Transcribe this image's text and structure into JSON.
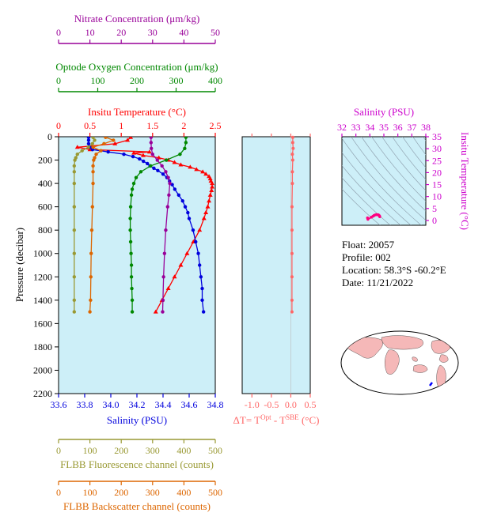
{
  "info": {
    "float": "Float:  20057",
    "profile": "Profile:  002",
    "location": "Location:  58.3°S  -60.2°E",
    "date": "Date:  11/21/2022"
  },
  "colors": {
    "temperature": "#ff0000",
    "salinity": "#0000dd",
    "oxygen": "#008800",
    "nitrate": "#990099",
    "fluorescence": "#999933",
    "backscatter": "#dd6600",
    "dt": "#ff6666",
    "panel_bg": "#cdeff8",
    "map_land": "#f5b8b8"
  },
  "chart_data": [
    {
      "type": "line",
      "panel": "main",
      "ylabel": "Pressure (decibar)",
      "ylim": [
        2200,
        0
      ],
      "yticks": [
        0,
        200,
        400,
        600,
        800,
        1000,
        1200,
        1400,
        1600,
        1800,
        2000,
        2200
      ],
      "axes": {
        "nitrate": {
          "label": "Nitrate Concentration (μm/kg)",
          "lim": [
            0,
            50
          ],
          "ticks": [
            0,
            10,
            20,
            30,
            40,
            50
          ]
        },
        "oxygen": {
          "label": "Optode Oxygen Concentration (μm/kg)",
          "lim": [
            0,
            400
          ],
          "ticks": [
            0,
            100,
            200,
            300,
            400
          ]
        },
        "temperature": {
          "label": "Insitu Temperature (°C)",
          "lim": [
            0,
            2.5
          ],
          "ticks": [
            "0",
            "0.5",
            "1",
            "1.5",
            "2",
            "2.5"
          ]
        },
        "salinity": {
          "label": "Salinity (PSU)",
          "lim": [
            33.6,
            34.8
          ],
          "ticks": [
            "33.6",
            "33.8",
            "34.0",
            "34.2",
            "34.4",
            "34.6",
            "34.8"
          ]
        },
        "fluorescence": {
          "label": "FLBB Fluorescence channel (counts)",
          "lim": [
            0,
            500
          ],
          "ticks": [
            0,
            100,
            200,
            300,
            400,
            500
          ]
        },
        "backscatter": {
          "label": "FLBB Backscatter channel (counts)",
          "lim": [
            0,
            500
          ],
          "ticks": [
            0,
            100,
            200,
            300,
            400,
            500
          ]
        }
      },
      "series": [
        {
          "key": "temperature",
          "marker": "triangle",
          "pressure": [
            5,
            30,
            60,
            90,
            110,
            130,
            140,
            160,
            180,
            200,
            220,
            240,
            260,
            280,
            300,
            320,
            340,
            360,
            380,
            400,
            430,
            460,
            500,
            550,
            600,
            650,
            700,
            800,
            900,
            1000,
            1100,
            1200,
            1300,
            1400,
            1500
          ],
          "values": [
            1.15,
            1.1,
            0.9,
            0.3,
            0.5,
            1.45,
            1.2,
            1.35,
            1.6,
            1.75,
            1.85,
            1.95,
            2.1,
            2.2,
            2.3,
            2.35,
            2.4,
            2.42,
            2.43,
            2.45,
            2.45,
            2.44,
            2.42,
            2.4,
            2.38,
            2.35,
            2.32,
            2.25,
            2.15,
            2.05,
            1.95,
            1.85,
            1.75,
            1.65,
            1.55
          ]
        },
        {
          "key": "salinity",
          "marker": "circle",
          "pressure": [
            5,
            30,
            60,
            90,
            110,
            130,
            150,
            170,
            190,
            210,
            230,
            250,
            270,
            290,
            320,
            350,
            380,
            410,
            450,
            500,
            550,
            600,
            650,
            700,
            800,
            900,
            1000,
            1100,
            1200,
            1300,
            1400,
            1500
          ],
          "values": [
            33.83,
            33.83,
            33.83,
            33.84,
            33.86,
            33.98,
            34.1,
            34.17,
            34.22,
            34.25,
            34.28,
            34.3,
            34.33,
            34.36,
            34.4,
            34.43,
            34.45,
            34.47,
            34.49,
            34.52,
            34.55,
            34.57,
            34.59,
            34.6,
            34.63,
            34.65,
            34.67,
            34.68,
            34.69,
            34.7,
            34.7,
            34.71
          ]
        },
        {
          "key": "oxygen",
          "marker": "circle",
          "pressure": [
            5,
            50,
            100,
            150,
            200,
            250,
            300,
            350,
            400,
            450,
            500,
            600,
            700,
            800,
            900,
            1000,
            1100,
            1200,
            1300,
            1400,
            1500
          ],
          "values": [
            325,
            325,
            322,
            310,
            275,
            235,
            210,
            198,
            192,
            188,
            186,
            184,
            183,
            183,
            184,
            185,
            186,
            186,
            187,
            188,
            188
          ]
        },
        {
          "key": "nitrate",
          "marker": "circle",
          "pressure": [
            5,
            50,
            100,
            150,
            200,
            250,
            300,
            350,
            400,
            500,
            600,
            800,
            1000,
            1200,
            1400,
            1500
          ],
          "values": [
            29.5,
            29.5,
            29.6,
            30,
            31.5,
            33,
            34.2,
            35,
            35.5,
            35.2,
            34.8,
            34.2,
            33.8,
            33.5,
            33.3,
            33.2
          ]
        },
        {
          "key": "fluorescence",
          "marker": "circle",
          "pressure": [
            5,
            30,
            60,
            90,
            120,
            150,
            180,
            200,
            250,
            300,
            400,
            600,
            800,
            1000,
            1200,
            1400,
            1500
          ],
          "values": [
            110,
            115,
            108,
            95,
            75,
            60,
            55,
            52,
            50,
            50,
            50,
            50,
            50,
            50,
            50,
            50,
            50
          ]
        },
        {
          "key": "backscatter",
          "marker": "circle",
          "pressure": [
            5,
            30,
            60,
            90,
            120,
            150,
            180,
            200,
            250,
            300,
            400,
            600,
            800,
            1000,
            1200,
            1400,
            1500
          ],
          "values": [
            150,
            175,
            145,
            110,
            135,
            120,
            115,
            112,
            110,
            110,
            110,
            108,
            106,
            104,
            103,
            102,
            100
          ]
        }
      ]
    },
    {
      "type": "line",
      "panel": "delta_t",
      "xlabel": "ΔT= TOpt - TSBE (°C)",
      "xlim": [
        -1.25,
        0.5
      ],
      "xticks": [
        "-1.0",
        "-0.5",
        "0.0",
        "0.5"
      ],
      "ylim": [
        2200,
        0
      ],
      "series": [
        {
          "key": "dt",
          "pressure": [
            5,
            50,
            100,
            150,
            200,
            300,
            400,
            600,
            800,
            1000,
            1200,
            1400,
            1500
          ],
          "values": [
            0.05,
            0.05,
            0.06,
            0.04,
            0.05,
            0.04,
            0.04,
            0.03,
            0.03,
            0.03,
            0.03,
            0.03,
            0.03
          ]
        }
      ]
    },
    {
      "type": "scatter",
      "panel": "ts",
      "xlabel": "Salinity (PSU)",
      "ylabel": "Insitu Temperature (°C)",
      "xlim": [
        32,
        38
      ],
      "ylim": [
        -2,
        35
      ],
      "xticks": [
        "32",
        "33",
        "34",
        "35",
        "36",
        "37",
        "38"
      ],
      "yticks": [
        "0",
        "5",
        "10",
        "15",
        "20",
        "25",
        "30",
        "35"
      ],
      "series": [
        {
          "key": "ts",
          "x": [
            33.83,
            33.86,
            34.1,
            34.22,
            34.3,
            34.4,
            34.47,
            34.55,
            34.6,
            34.65,
            34.69,
            34.71
          ],
          "y": [
            1.1,
            0.5,
            1.35,
            1.75,
            2.1,
            2.35,
            2.43,
            2.42,
            2.35,
            2.15,
            1.85,
            1.55
          ]
        }
      ]
    }
  ]
}
